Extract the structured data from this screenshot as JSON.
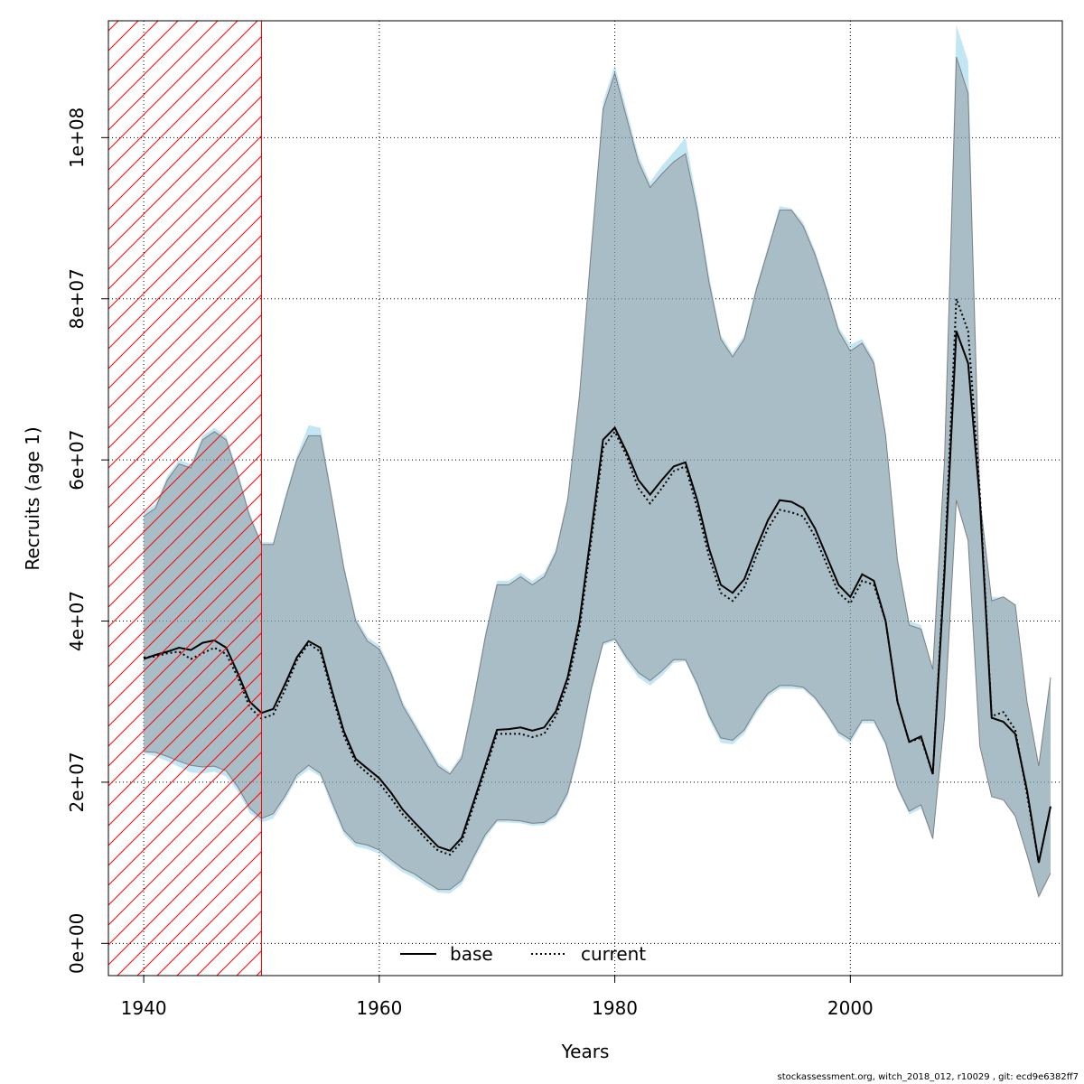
{
  "chart_data": {
    "type": "line",
    "xlabel": "Years",
    "ylabel": "Recruits (age 1)",
    "xlim": [
      1937,
      2018
    ],
    "ylim": [
      -4000000,
      114500000
    ],
    "xticks": [
      1940,
      1960,
      1980,
      2000
    ],
    "yticks": [
      0,
      20000000,
      40000000,
      60000000,
      80000000,
      100000000
    ],
    "ytick_labels": [
      "0e+00",
      "2e+07",
      "4e+07",
      "6e+07",
      "8e+07",
      "1e+08"
    ],
    "grid": true,
    "shaded_period": {
      "x_start": 1937,
      "x_end": 1950,
      "pattern": "hatched",
      "color": "#ff0000"
    },
    "x": [
      1940,
      1941,
      1942,
      1943,
      1944,
      1945,
      1946,
      1947,
      1948,
      1949,
      1950,
      1951,
      1952,
      1953,
      1954,
      1955,
      1956,
      1957,
      1958,
      1959,
      1960,
      1961,
      1962,
      1963,
      1964,
      1965,
      1966,
      1967,
      1968,
      1969,
      1970,
      1971,
      1972,
      1973,
      1974,
      1975,
      1976,
      1977,
      1978,
      1979,
      1980,
      1981,
      1982,
      1983,
      1984,
      1985,
      1986,
      1987,
      1988,
      1989,
      1990,
      1991,
      1992,
      1993,
      1994,
      1995,
      1996,
      1997,
      1998,
      1999,
      2000,
      2001,
      2002,
      2003,
      2004,
      2005,
      2006,
      2007,
      2008,
      2009,
      2010,
      2011,
      2012,
      2013,
      2014,
      2015,
      2016,
      2017
    ],
    "series": [
      {
        "name": "base",
        "line_style": "solid",
        "color": "#000000",
        "band_color": "#7f7f7f",
        "values": [
          35.3,
          35.8,
          36.2,
          36.7,
          36.4,
          37.3,
          37.6,
          36.7,
          33.5,
          30,
          28.6,
          29.1,
          32.2,
          35.5,
          37.5,
          36.7,
          31.3,
          26.3,
          22.9,
          21.7,
          20.5,
          18.7,
          16.6,
          15,
          13.5,
          12,
          11.5,
          13.1,
          17.5,
          22,
          26.5,
          26.6,
          26.8,
          26.4,
          26.8,
          28.8,
          33,
          40,
          51,
          62.5,
          64,
          61,
          57.5,
          55.7,
          57.5,
          59.2,
          59.7,
          55,
          49,
          44.5,
          43.5,
          45.2,
          49,
          52.5,
          55,
          54.8,
          54,
          51.5,
          48,
          44.5,
          43,
          45.8,
          45,
          40,
          30,
          25,
          25.7,
          21,
          46,
          76,
          72,
          55,
          28,
          27.5,
          26,
          19,
          10,
          17
        ],
        "lower": [
          23.8,
          23.7,
          23.2,
          22.6,
          22.1,
          21.9,
          22,
          21.4,
          19.4,
          16.8,
          15.5,
          16.1,
          18.3,
          20.9,
          22.1,
          21.1,
          17.5,
          14,
          12.5,
          12.2,
          11.6,
          10.4,
          9.3,
          8.6,
          7.6,
          6.7,
          6.7,
          7.8,
          10.7,
          13.5,
          15.3,
          15.3,
          15.2,
          14.9,
          15,
          16,
          18.7,
          24.4,
          31.6,
          37.3,
          37.8,
          35.5,
          33.6,
          32.6,
          33.8,
          35.2,
          35.2,
          32.2,
          28.3,
          25.5,
          25.2,
          26.5,
          29,
          31,
          32,
          32,
          31.8,
          30.5,
          28.5,
          26.2,
          25.3,
          27.7,
          27.7,
          24.9,
          19.4,
          16.4,
          17.2,
          13,
          28,
          55,
          50,
          24.5,
          18.2,
          17.8,
          15.8,
          11,
          5.8,
          8.7
        ],
        "upper": [
          53,
          54,
          57.5,
          59.5,
          59,
          62.5,
          63.5,
          62.5,
          58,
          53,
          49.5,
          49.5,
          55,
          60,
          63,
          63,
          55,
          46.5,
          40,
          37.5,
          36.5,
          33.5,
          29.5,
          27,
          24.5,
          22,
          21,
          23,
          30,
          38,
          44.5,
          44.5,
          45.5,
          44.5,
          45.5,
          48.5,
          55,
          68,
          86,
          103.5,
          108,
          102.5,
          97,
          93.8,
          95.5,
          97,
          98,
          91,
          82,
          75,
          72.8,
          75,
          81,
          86,
          91,
          91,
          89,
          85.5,
          81,
          76,
          73.5,
          74.5,
          72,
          63,
          47.5,
          39.5,
          39,
          34,
          60,
          110,
          105.5,
          55,
          42.5,
          43,
          42,
          30,
          22,
          33
        ]
      },
      {
        "name": "current",
        "line_style": "dotted",
        "color": "#000000",
        "band_color": "#87ceeb",
        "values": [
          35.5,
          35.6,
          36,
          36.2,
          35.3,
          36,
          36.7,
          35.9,
          33,
          29.3,
          27.9,
          28.4,
          31.5,
          35.1,
          37.2,
          36.2,
          30.8,
          25.8,
          22.4,
          21.1,
          19.9,
          18,
          16,
          14.5,
          12.9,
          11.5,
          11,
          12.6,
          17,
          21.5,
          26,
          26,
          26,
          25.6,
          26,
          28.2,
          32.2,
          39,
          50,
          61.5,
          63.5,
          60.5,
          56.5,
          54.6,
          56.5,
          58.6,
          59.2,
          54,
          48,
          43.5,
          42.5,
          44.2,
          48,
          51.5,
          53.8,
          53.5,
          53,
          50.5,
          47,
          43.5,
          42.2,
          45,
          44.5,
          40,
          30,
          25,
          25.5,
          21,
          47,
          80,
          76,
          56,
          28.2,
          28.7,
          26.5,
          18.5,
          10,
          17
        ],
        "lower": [
          23.6,
          23.2,
          22.6,
          21.9,
          21.2,
          21.1,
          21.3,
          20.7,
          18.8,
          16.2,
          15,
          15.5,
          17.8,
          20.4,
          21.6,
          20.7,
          16.9,
          13.5,
          12,
          11.7,
          11.1,
          9.9,
          8.8,
          8.1,
          7.1,
          6.3,
          6.2,
          7.3,
          10.2,
          13,
          15,
          15,
          14.9,
          14.6,
          14.7,
          15.6,
          18.2,
          23.8,
          31,
          37,
          37.5,
          35,
          33,
          32,
          33.2,
          34.8,
          35,
          31.8,
          27.8,
          24.9,
          24.7,
          26,
          28.5,
          30.6,
          31.6,
          31.6,
          31.5,
          30.2,
          28.2,
          25.8,
          24.8,
          27.3,
          27.3,
          24.5,
          19.1,
          16,
          16.7,
          13,
          28,
          55,
          50,
          24.5,
          18.2,
          17.8,
          15.8,
          11,
          5.8,
          8.7
        ],
        "upper": [
          53.5,
          54.5,
          58,
          60,
          59.5,
          63,
          64,
          63,
          58.5,
          53.5,
          49.8,
          49.8,
          55.5,
          60.5,
          64.3,
          64,
          55.5,
          47,
          40.5,
          38,
          37,
          34,
          30,
          27.5,
          25,
          22.5,
          21.3,
          23.5,
          30.5,
          38.5,
          45,
          45,
          46,
          45,
          46,
          49,
          55.5,
          68.5,
          87,
          104.5,
          109,
          103.5,
          97.8,
          94.5,
          96.5,
          98.2,
          100,
          92,
          83,
          75.5,
          73.3,
          75.5,
          81.5,
          86.5,
          91.5,
          91.2,
          89.5,
          86,
          81.5,
          76.5,
          74.3,
          75,
          72.5,
          63.5,
          48,
          40,
          39.5,
          34,
          60,
          114,
          109.5,
          56,
          43,
          43,
          42,
          30,
          22,
          33
        ]
      }
    ]
  },
  "legend": {
    "items": [
      {
        "label": "base",
        "style": "solid"
      },
      {
        "label": "current",
        "style": "dotted"
      }
    ]
  },
  "footer": "stockassessment.org, witch_2018_012, r10029 , git: ecd9e6382ff7"
}
